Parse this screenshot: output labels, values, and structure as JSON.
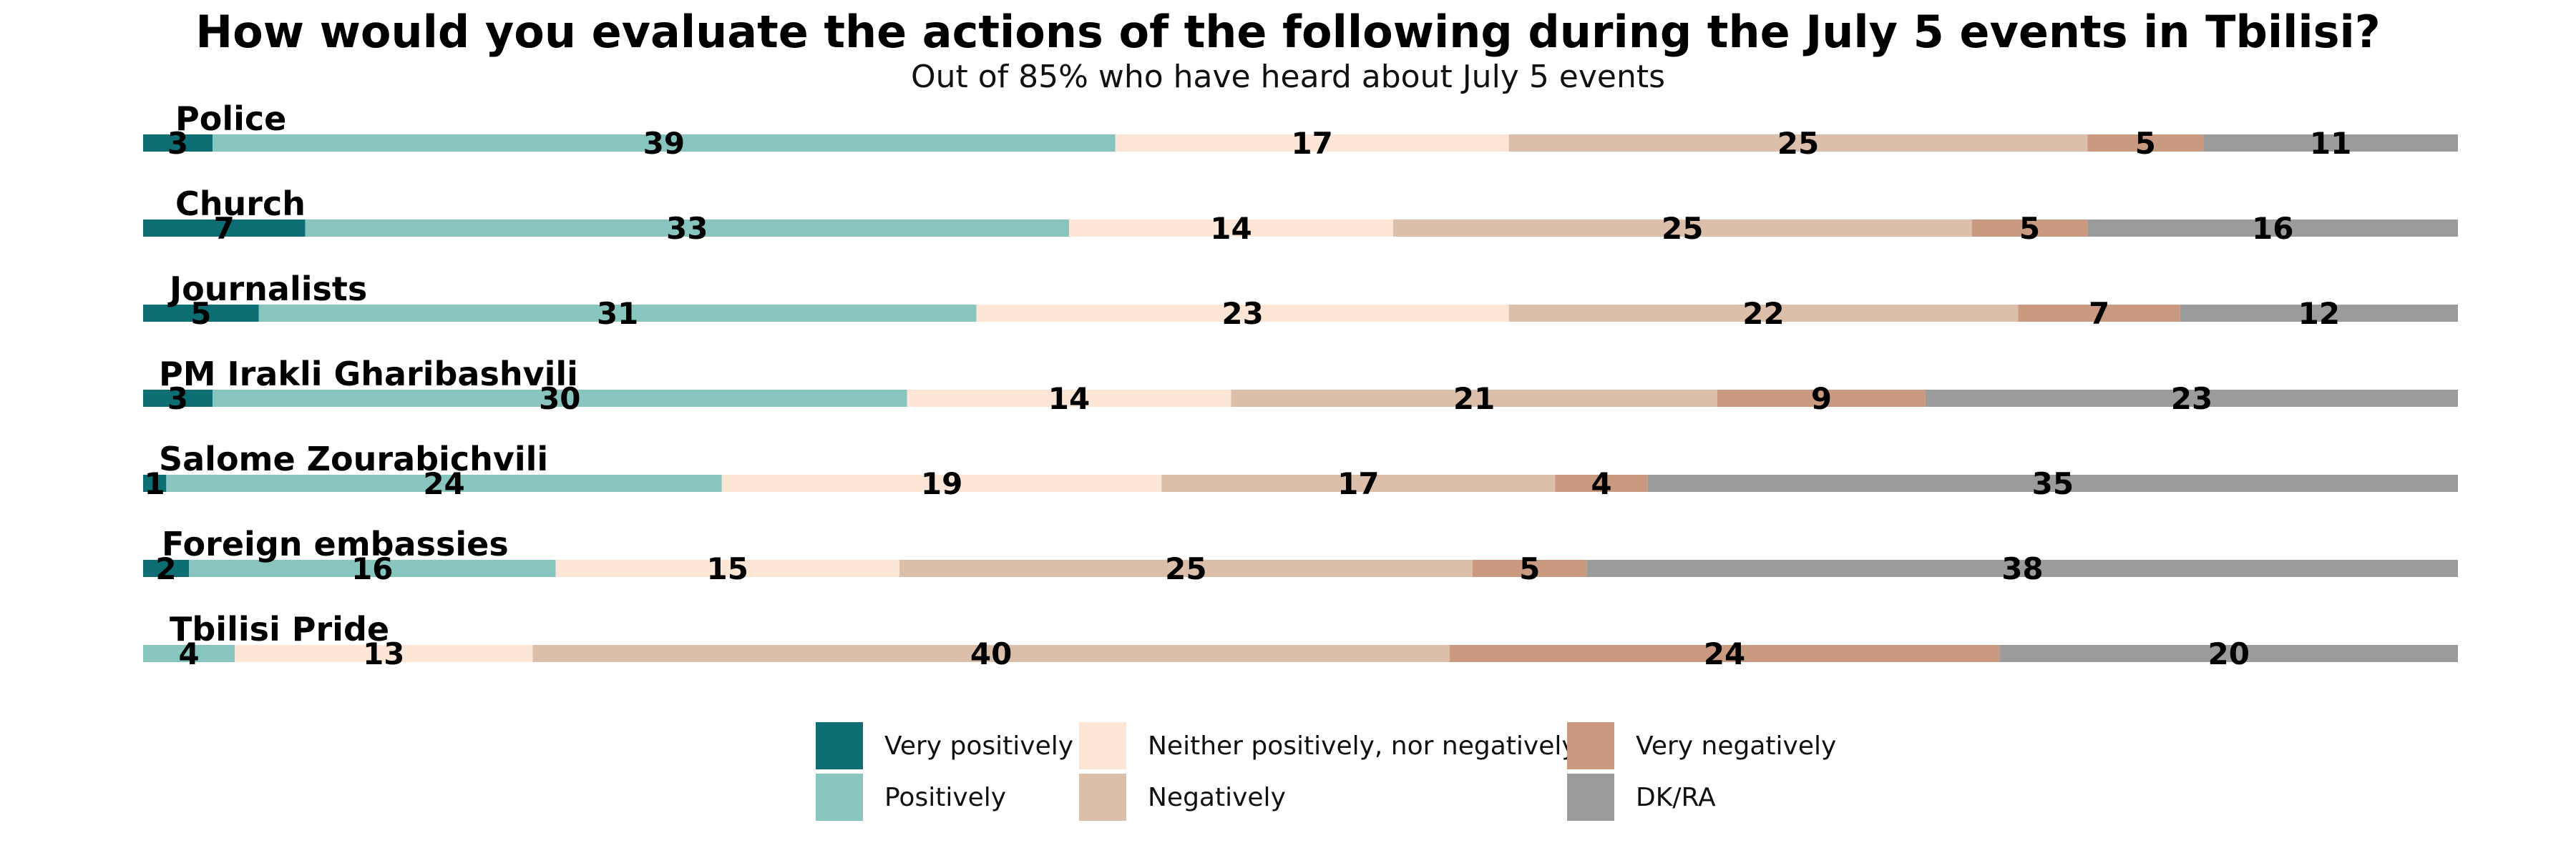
{
  "chart_data": {
    "type": "bar",
    "orientation": "horizontal-stacked",
    "title": "How would you evaluate the actions of the following during the July 5 events in Tbilisi?",
    "subtitle": "Out of 85% who have heard about July 5 events",
    "categories": [
      "Police",
      "Church",
      "Journalists",
      "PM Irakli Gharibashvili",
      "Salome Zourabichvili",
      "Foreign embassies",
      "Tbilisi Pride"
    ],
    "series": [
      {
        "name": "Very positively",
        "color": "#0d6e74",
        "values": [
          3,
          7,
          5,
          3,
          1,
          2,
          0
        ]
      },
      {
        "name": "Positively",
        "color": "#88c5bf",
        "values": [
          39,
          33,
          31,
          30,
          24,
          16,
          4
        ]
      },
      {
        "name": "Neither positively, nor negatively",
        "color": "#fde6d6",
        "values": [
          17,
          14,
          23,
          14,
          19,
          15,
          13
        ]
      },
      {
        "name": "Negatively",
        "color": "#dcbfaa",
        "values": [
          25,
          25,
          22,
          21,
          17,
          25,
          40
        ]
      },
      {
        "name": "Very negatively",
        "color": "#c99a7f",
        "values": [
          5,
          5,
          7,
          9,
          4,
          5,
          24
        ]
      },
      {
        "name": "DK/RA",
        "color": "#9b9b9b",
        "values": [
          11,
          16,
          12,
          23,
          35,
          38,
          20
        ]
      }
    ],
    "legend_position": "bottom",
    "grid": false
  }
}
